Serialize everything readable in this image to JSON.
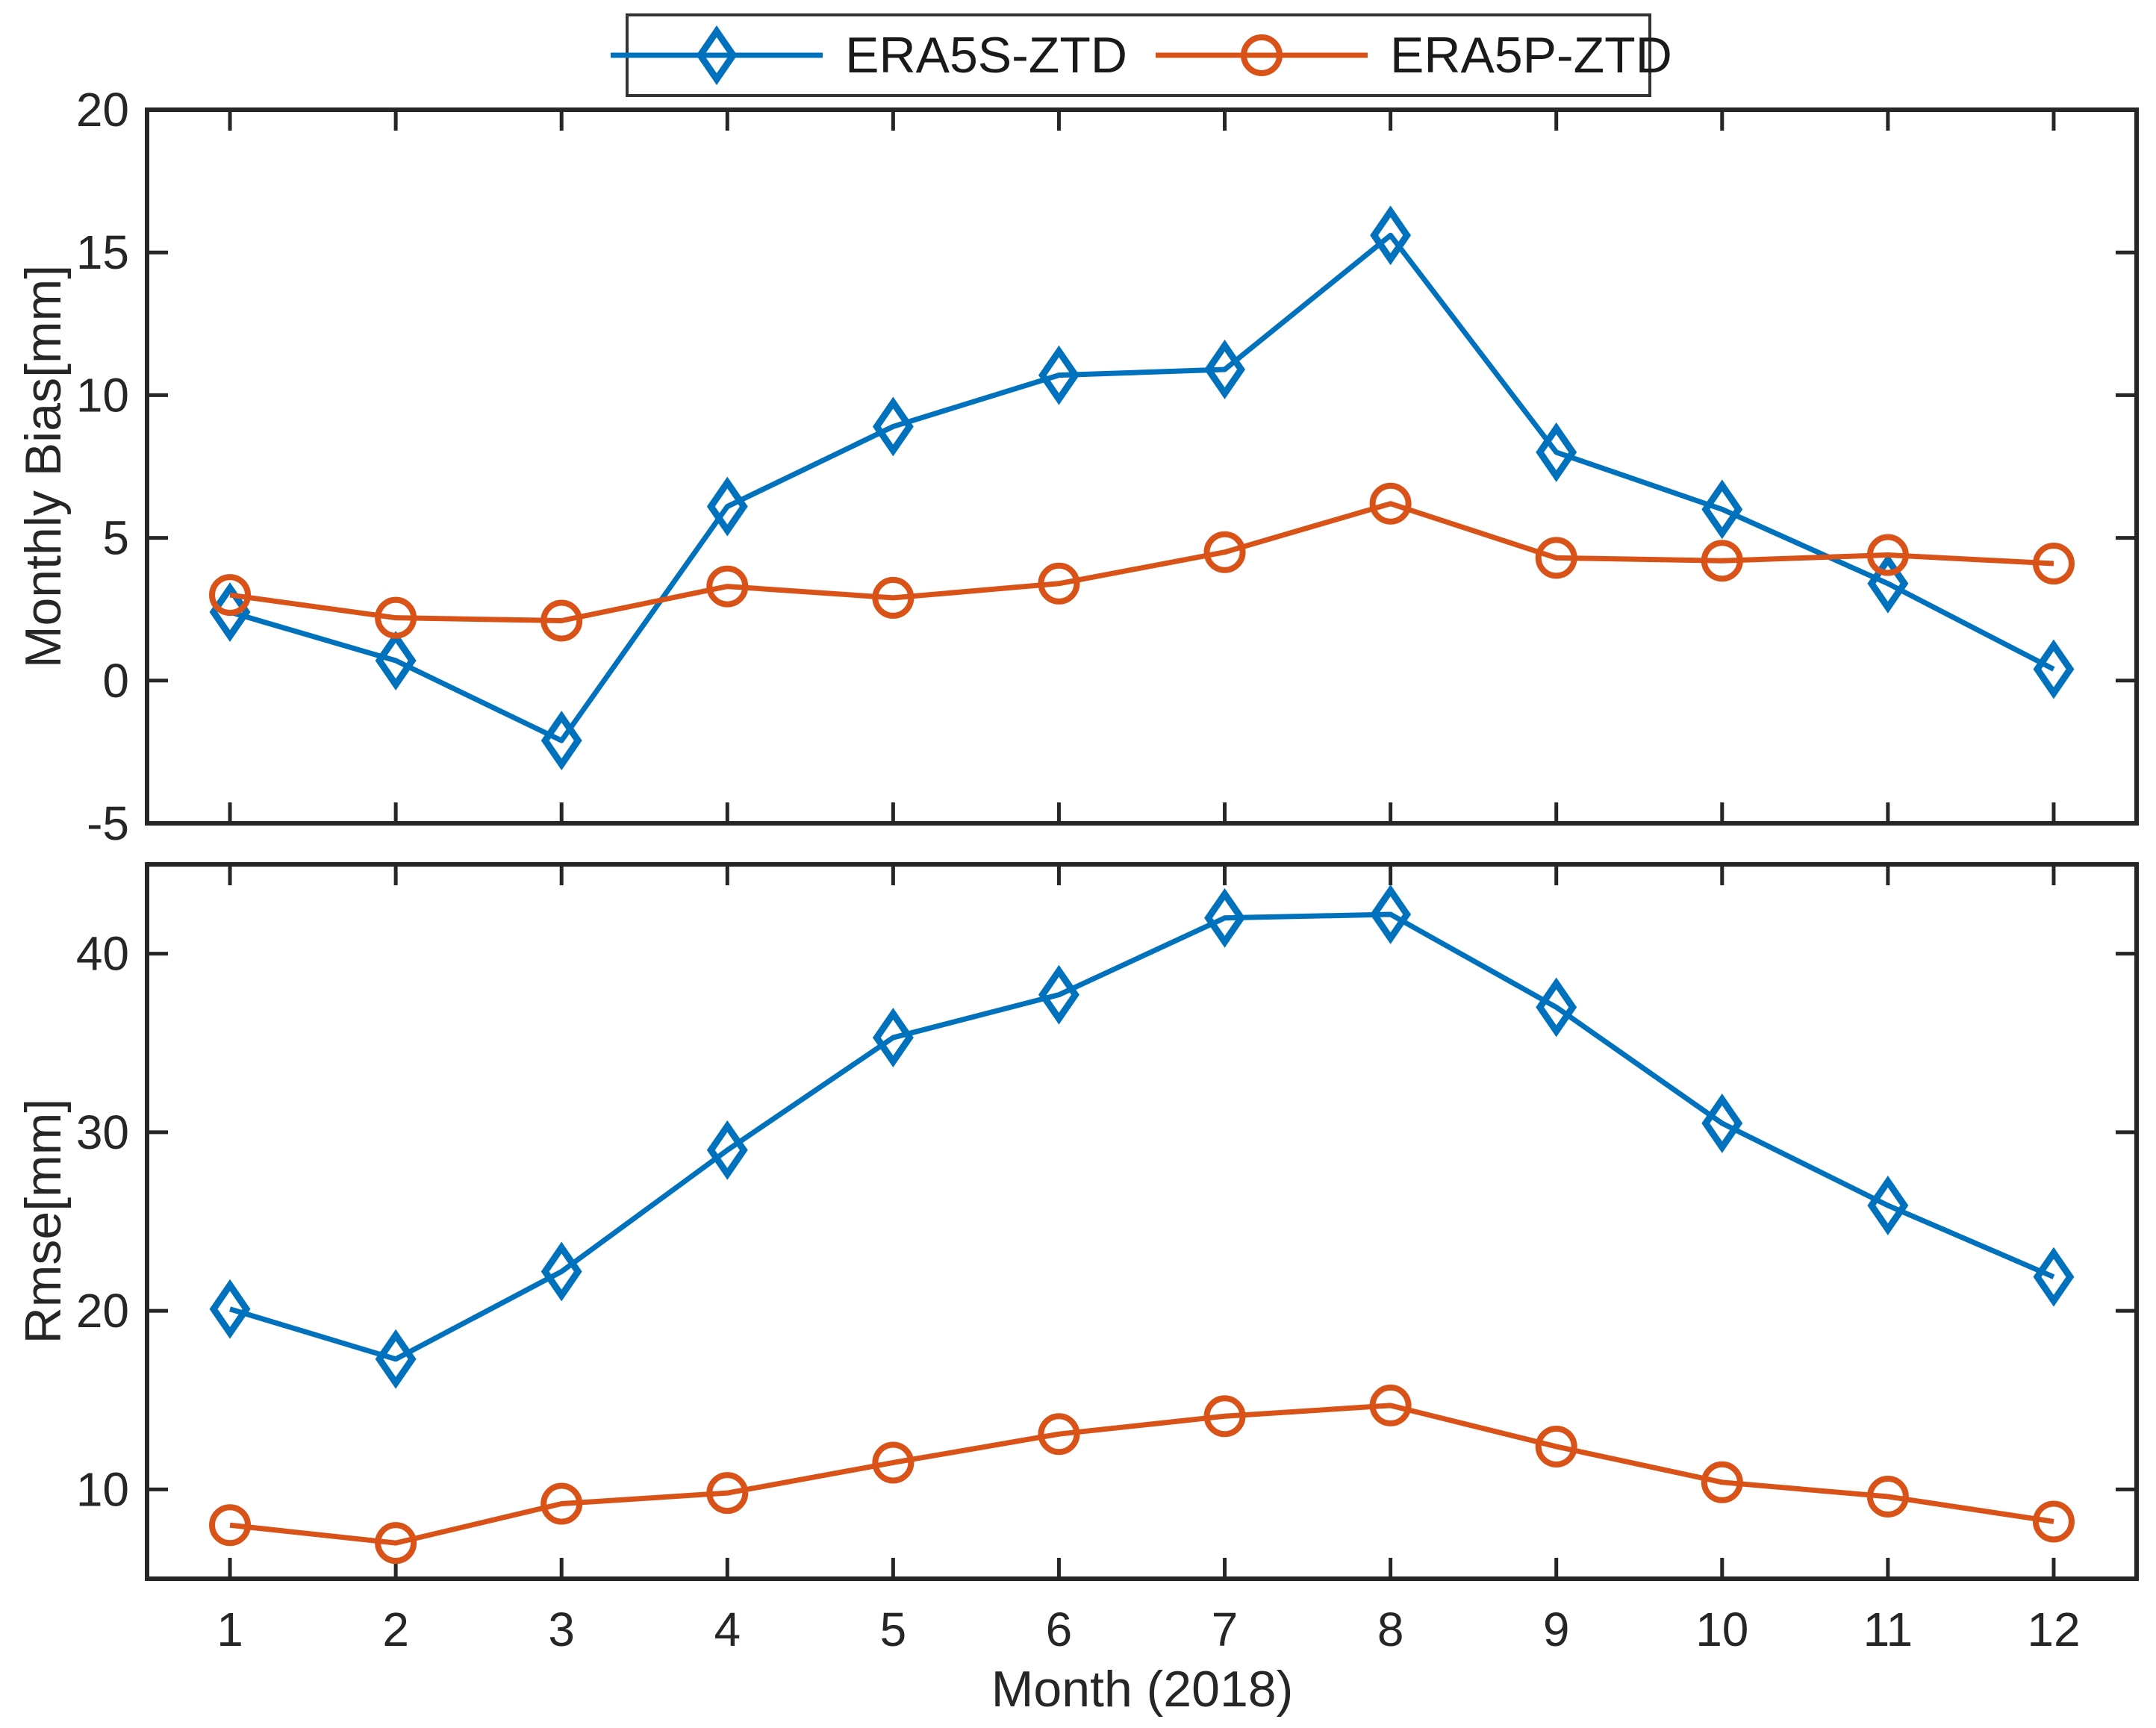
{
  "figure": {
    "background": "#ffffff",
    "axis_color": "#262626",
    "xlabel": "Month (2018)",
    "legend": {
      "items": [
        {
          "label": "ERA5S-ZTD",
          "color": "#0072BD",
          "marker": "diamond"
        },
        {
          "label": "ERA5P-ZTD",
          "color": "#D95319",
          "marker": "circle"
        }
      ]
    }
  },
  "chart_data": [
    {
      "type": "line",
      "title": "",
      "xlabel": "",
      "ylabel": "Monthly Bias[mm]",
      "x": [
        1,
        2,
        3,
        4,
        5,
        6,
        7,
        8,
        9,
        10,
        11,
        12
      ],
      "xlim": [
        0.5,
        12.5
      ],
      "ylim": [
        -5,
        20
      ],
      "xticks": [
        1,
        2,
        3,
        4,
        5,
        6,
        7,
        8,
        9,
        10,
        11,
        12
      ],
      "show_xtick_labels": false,
      "yticks": [
        -5,
        0,
        5,
        10,
        15,
        20
      ],
      "grid": false,
      "legend_position": "outside-top-center",
      "series": [
        {
          "name": "ERA5S-ZTD",
          "color": "#0072BD",
          "marker": "diamond",
          "values": [
            2.4,
            0.7,
            -2.1,
            6.1,
            8.9,
            10.7,
            10.9,
            15.6,
            8.0,
            6.0,
            3.4,
            0.4
          ]
        },
        {
          "name": "ERA5P-ZTD",
          "color": "#D95319",
          "marker": "circle",
          "values": [
            3.0,
            2.2,
            2.1,
            3.3,
            2.9,
            3.4,
            4.5,
            6.2,
            4.3,
            4.2,
            4.4,
            4.1
          ]
        }
      ]
    },
    {
      "type": "line",
      "title": "",
      "xlabel": "Month (2018)",
      "ylabel": "Rmse[mm]",
      "x": [
        1,
        2,
        3,
        4,
        5,
        6,
        7,
        8,
        9,
        10,
        11,
        12
      ],
      "xlim": [
        0.5,
        12.5
      ],
      "ylim": [
        5,
        45
      ],
      "xticks": [
        1,
        2,
        3,
        4,
        5,
        6,
        7,
        8,
        9,
        10,
        11,
        12
      ],
      "show_xtick_labels": true,
      "yticks": [
        10,
        20,
        30,
        40
      ],
      "grid": false,
      "legend_position": "none",
      "series": [
        {
          "name": "ERA5S-ZTD",
          "color": "#0072BD",
          "marker": "diamond",
          "values": [
            20.1,
            17.3,
            22.2,
            29.0,
            35.3,
            37.7,
            42.0,
            42.2,
            37.0,
            30.5,
            25.9,
            21.9
          ]
        },
        {
          "name": "ERA5P-ZTD",
          "color": "#D95319",
          "marker": "circle",
          "values": [
            8.0,
            7.0,
            9.2,
            9.8,
            11.5,
            13.1,
            14.1,
            14.7,
            12.4,
            10.4,
            9.6,
            8.2
          ]
        }
      ]
    }
  ]
}
